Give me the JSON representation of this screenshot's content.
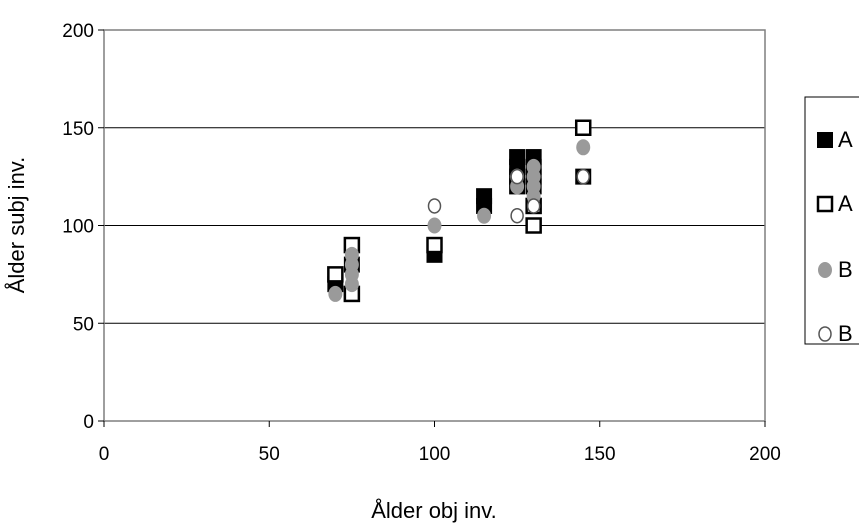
{
  "chart_data": {
    "type": "scatter",
    "title": "",
    "xlabel": "Ålder obj inv.",
    "ylabel": "Ålder subj inv.",
    "xlim": [
      0,
      200
    ],
    "ylim": [
      0,
      200
    ],
    "x_ticks": [
      0,
      50,
      100,
      150,
      200
    ],
    "y_ticks": [
      0,
      50,
      100,
      150,
      200
    ],
    "grid": "horizontal",
    "legend_position": "right",
    "series": [
      {
        "name": "A",
        "marker": "filled-square",
        "color": "#000000",
        "points": [
          [
            70,
            70
          ],
          [
            75,
            65
          ],
          [
            75,
            80
          ],
          [
            100,
            85
          ],
          [
            115,
            110
          ],
          [
            115,
            115
          ],
          [
            125,
            120
          ],
          [
            125,
            125
          ],
          [
            125,
            130
          ],
          [
            125,
            135
          ],
          [
            130,
            120
          ],
          [
            130,
            125
          ],
          [
            130,
            130
          ],
          [
            130,
            135
          ],
          [
            145,
            125
          ]
        ]
      },
      {
        "name": "A",
        "marker": "hollow-square",
        "color": "#000000",
        "points": [
          [
            70,
            75
          ],
          [
            75,
            90
          ],
          [
            75,
            65
          ],
          [
            100,
            90
          ],
          [
            130,
            100
          ],
          [
            130,
            110
          ],
          [
            145,
            150
          ]
        ]
      },
      {
        "name": "B",
        "marker": "filled-circle",
        "color": "#9a9a9a",
        "points": [
          [
            70,
            65
          ],
          [
            75,
            70
          ],
          [
            75,
            75
          ],
          [
            75,
            80
          ],
          [
            75,
            85
          ],
          [
            100,
            100
          ],
          [
            115,
            105
          ],
          [
            125,
            120
          ],
          [
            125,
            125
          ],
          [
            130,
            115
          ],
          [
            130,
            120
          ],
          [
            130,
            125
          ],
          [
            130,
            130
          ],
          [
            145,
            140
          ]
        ]
      },
      {
        "name": "B",
        "marker": "hollow-circle",
        "color": "#555555",
        "points": [
          [
            100,
            110
          ],
          [
            125,
            105
          ],
          [
            125,
            125
          ],
          [
            130,
            110
          ],
          [
            145,
            125
          ]
        ]
      }
    ]
  }
}
